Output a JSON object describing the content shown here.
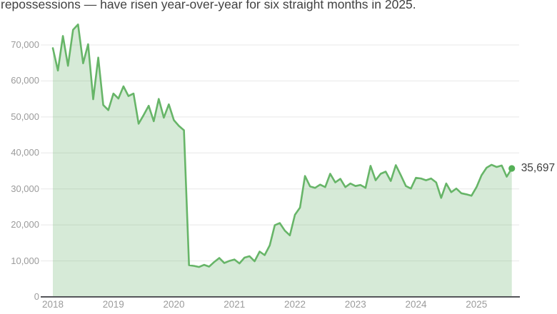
{
  "header": {
    "title": "repossessions — have risen year-over-year for six straight months in 2025."
  },
  "chart_data": {
    "type": "area",
    "title": "repossessions — have risen year-over-year for six straight months in 2025.",
    "xlabel": "",
    "ylabel": "",
    "frequency": "monthly",
    "x_range": [
      "2018-01",
      "2025-08"
    ],
    "ylim": [
      0,
      77000
    ],
    "grid": "horizontal",
    "legend": "none",
    "x": [
      "2018-01",
      "2018-02",
      "2018-03",
      "2018-04",
      "2018-05",
      "2018-06",
      "2018-07",
      "2018-08",
      "2018-09",
      "2018-10",
      "2018-11",
      "2018-12",
      "2019-01",
      "2019-02",
      "2019-03",
      "2019-04",
      "2019-05",
      "2019-06",
      "2019-07",
      "2019-08",
      "2019-09",
      "2019-10",
      "2019-11",
      "2019-12",
      "2020-01",
      "2020-02",
      "2020-03",
      "2020-04",
      "2020-05",
      "2020-06",
      "2020-07",
      "2020-08",
      "2020-09",
      "2020-10",
      "2020-11",
      "2020-12",
      "2021-01",
      "2021-02",
      "2021-03",
      "2021-04",
      "2021-05",
      "2021-06",
      "2021-07",
      "2021-08",
      "2021-09",
      "2021-10",
      "2021-11",
      "2021-12",
      "2022-01",
      "2022-02",
      "2022-03",
      "2022-04",
      "2022-05",
      "2022-06",
      "2022-07",
      "2022-08",
      "2022-09",
      "2022-10",
      "2022-11",
      "2022-12",
      "2023-01",
      "2023-02",
      "2023-03",
      "2023-04",
      "2023-05",
      "2023-06",
      "2023-07",
      "2023-08",
      "2023-09",
      "2023-10",
      "2023-11",
      "2023-12",
      "2024-01",
      "2024-02",
      "2024-03",
      "2024-04",
      "2024-05",
      "2024-06",
      "2024-07",
      "2024-08",
      "2024-09",
      "2024-10",
      "2024-11",
      "2024-12",
      "2025-01",
      "2025-02",
      "2025-03",
      "2025-04",
      "2025-05",
      "2025-06",
      "2025-07",
      "2025-08"
    ],
    "values": [
      69100,
      62900,
      72500,
      64200,
      74200,
      75700,
      64900,
      70200,
      54900,
      66500,
      53300,
      51900,
      56500,
      55100,
      58500,
      55800,
      56500,
      48100,
      50500,
      53100,
      48800,
      55000,
      49800,
      53500,
      49100,
      47500,
      46300,
      8800,
      8600,
      8300,
      8900,
      8400,
      9700,
      10800,
      9400,
      10000,
      10400,
      9300,
      10900,
      11300,
      9900,
      12600,
      11600,
      14300,
      19900,
      20500,
      18400,
      17100,
      22800,
      24800,
      33600,
      30700,
      30300,
      31200,
      30500,
      34200,
      31800,
      32800,
      30500,
      31500,
      30800,
      31100,
      30300,
      36400,
      32400,
      34200,
      34800,
      32200,
      36600,
      33800,
      30800,
      30100,
      33100,
      32900,
      32400,
      32900,
      31800,
      27500,
      31500,
      29100,
      30100,
      28800,
      28500,
      28100,
      30500,
      33800,
      35900,
      36700,
      36100,
      36500,
      33400,
      35697
    ],
    "end_value": 35697,
    "end_label": "35,697",
    "y_ticks": [
      {
        "label": "0",
        "value": 0
      },
      {
        "label": "10,000",
        "value": 10000
      },
      {
        "label": "20,000",
        "value": 20000
      },
      {
        "label": "30,000",
        "value": 30000
      },
      {
        "label": "40,000",
        "value": 40000
      },
      {
        "label": "50,000",
        "value": 50000
      },
      {
        "label": "60,000",
        "value": 60000
      },
      {
        "label": "70,000",
        "value": 70000
      }
    ],
    "x_ticks": [
      {
        "label": "2018",
        "index": 0
      },
      {
        "label": "2019",
        "index": 12
      },
      {
        "label": "2020",
        "index": 24
      },
      {
        "label": "2021",
        "index": 36
      },
      {
        "label": "2022",
        "index": 48
      },
      {
        "label": "2023",
        "index": 60
      },
      {
        "label": "2024",
        "index": 72
      },
      {
        "label": "2025",
        "index": 84
      }
    ],
    "colors": {
      "line": "#67b568",
      "fill": "rgba(104,179,106,0.27)",
      "dot": "#55b057",
      "axis": "#55565a",
      "grid": "#e8e8e8",
      "tick_text": "#9b9b9b",
      "annotation_text": "#3f3f3f",
      "title_text": "#414141"
    }
  }
}
